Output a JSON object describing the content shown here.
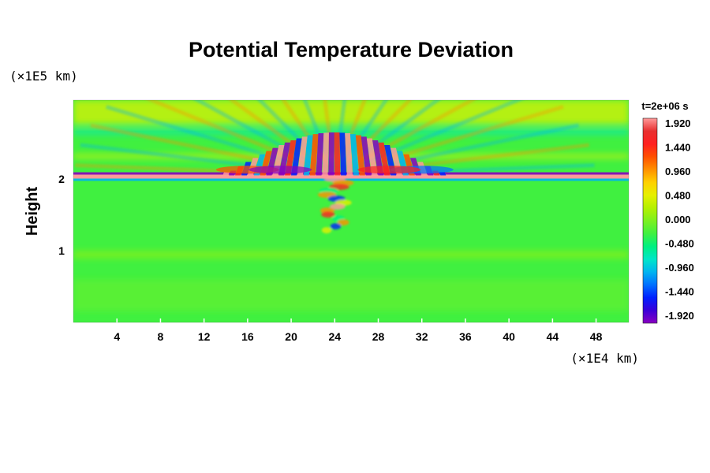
{
  "chart_data": {
    "type": "heatmap",
    "title": "Potential Temperature Deviation",
    "ylabel": "Height",
    "x_unit": "(×1E4 km)",
    "y_unit": "(×1E5 km)",
    "time_label": "t=2e+06 s",
    "x_range": [
      0,
      51
    ],
    "y_range": [
      0,
      3.1
    ],
    "x_ticks": [
      "4",
      "8",
      "12",
      "16",
      "20",
      "24",
      "28",
      "32",
      "36",
      "40",
      "44",
      "48"
    ],
    "x_tick_values": [
      4,
      8,
      12,
      16,
      20,
      24,
      28,
      32,
      36,
      40,
      44,
      48
    ],
    "y_ticks": [
      "1",
      "2"
    ],
    "y_tick_values": [
      1,
      2
    ],
    "colorbar": {
      "labels": [
        "1.920",
        "1.440",
        "0.960",
        "0.480",
        "0.000",
        "-0.480",
        "-0.960",
        "-1.440",
        "-1.920"
      ],
      "min": -1.92,
      "max": 1.92,
      "colors": [
        "#8a00c0",
        "#3a00d8",
        "#0020ff",
        "#0070ff",
        "#00b4f0",
        "#00e6c8",
        "#00f080",
        "#40f040",
        "#7cf020",
        "#b4f000",
        "#e6f000",
        "#ffd000",
        "#ff9000",
        "#ff5000",
        "#ff2020",
        "#e83030",
        "#ff9a9a"
      ]
    },
    "field": {
      "background": 0.0,
      "main_band_height": 2.05,
      "source_x": 24,
      "notes": "Strong alternating positive/negative anomalies concentrated near height 2.0-2.6 around x=14-34, thin horizontal band at height ~2.05 across full width, weaker plume beneath source down to ~1.3"
    }
  }
}
